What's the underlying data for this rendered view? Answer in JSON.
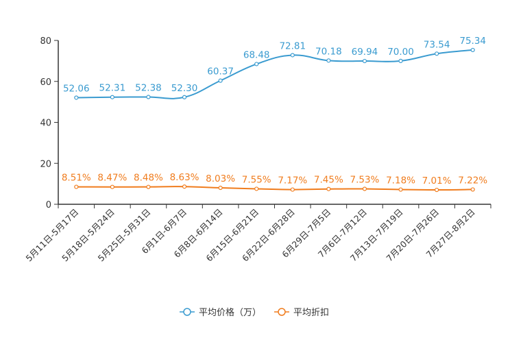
{
  "chart_data": {
    "type": "line",
    "title": "",
    "xlabel": "",
    "ylabel": "",
    "ylim": [
      0,
      80
    ],
    "yticks": [
      0,
      20,
      40,
      60,
      80
    ],
    "grid": false,
    "legend_position": "bottom-center",
    "categories": [
      "5月11日-5月17日",
      "5月18日-5月24日",
      "5月25日-5月31日",
      "6月1日-6月7日",
      "6月8日-6月14日",
      "6月15日-6月21日",
      "6月22日-6月28日",
      "6月29日-7月5日",
      "7月6日-7月12日",
      "7月13日-7月19日",
      "7月20日-7月26日",
      "7月27日-8月2日"
    ],
    "series": [
      {
        "name": "平均价格（万）",
        "color": "#3a9bd0",
        "values": [
          52.06,
          52.31,
          52.38,
          52.3,
          60.37,
          68.48,
          72.81,
          70.18,
          69.94,
          70.0,
          73.54,
          75.34
        ],
        "labels": [
          "52.06",
          "52.31",
          "52.38",
          "52.30",
          "60.37",
          "68.48",
          "72.81",
          "70.18",
          "69.94",
          "70.00",
          "73.54",
          "75.34"
        ]
      },
      {
        "name": "平均折扣",
        "color": "#f07c1d",
        "values": [
          8.51,
          8.47,
          8.48,
          8.63,
          8.03,
          7.55,
          7.17,
          7.45,
          7.53,
          7.18,
          7.01,
          7.22
        ],
        "labels": [
          "8.51%",
          "8.47%",
          "8.48%",
          "8.63%",
          "8.03%",
          "7.55%",
          "7.17%",
          "7.45%",
          "7.53%",
          "7.18%",
          "7.01%",
          "7.22%"
        ]
      }
    ]
  }
}
